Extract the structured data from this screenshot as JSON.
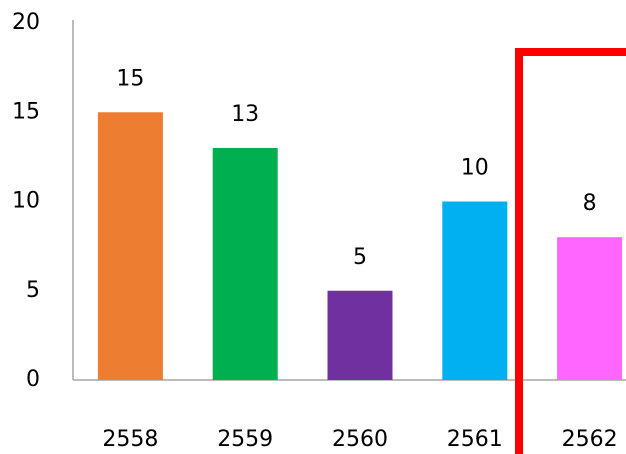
{
  "chart_data": {
    "type": "bar",
    "categories": [
      "2558",
      "2559",
      "2560",
      "2561",
      "2562"
    ],
    "values": [
      15,
      13,
      5,
      10,
      8
    ],
    "colors": [
      "#ed7d31",
      "#00b050",
      "#7030a0",
      "#00b0f0",
      "#ff66ff"
    ],
    "ylim": [
      0,
      20
    ],
    "yticks": [
      0,
      5,
      10,
      15,
      20
    ],
    "grid": false
  }
}
